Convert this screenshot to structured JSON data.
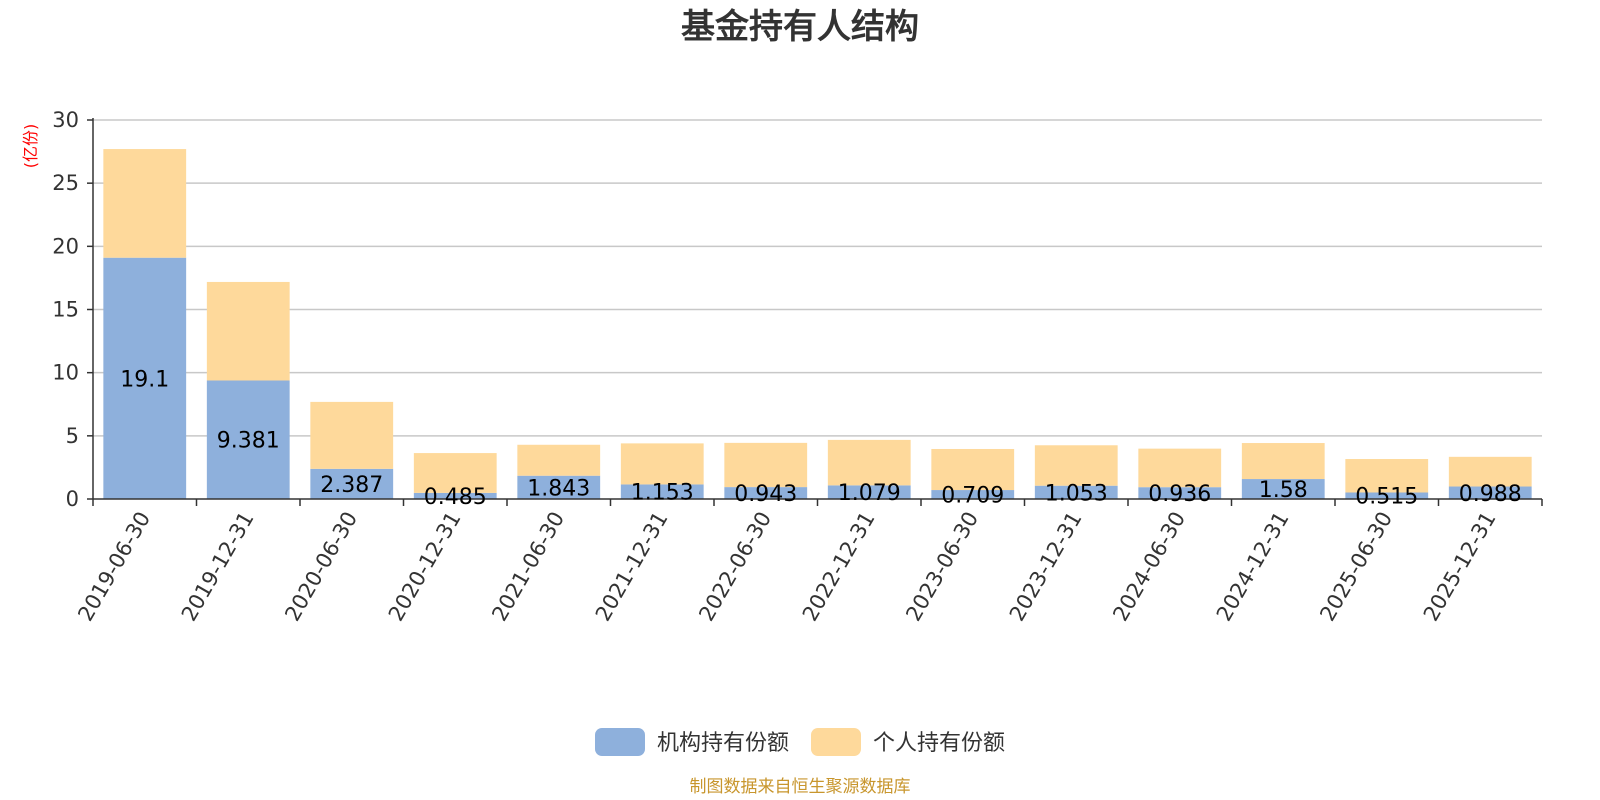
{
  "chart_data": {
    "type": "bar",
    "stacked": true,
    "title": "基金持有人结构",
    "ylabel": "(亿份)",
    "ylim": [
      0,
      30
    ],
    "yticks": [
      0,
      5,
      10,
      15,
      20,
      25,
      30
    ],
    "grid": true,
    "legend_position": "bottom",
    "categories": [
      "2019-06-30",
      "2019-12-31",
      "2020-06-30",
      "2020-12-31",
      "2021-06-30",
      "2021-12-31",
      "2022-06-30",
      "2022-12-31",
      "2023-06-30",
      "2023-12-31",
      "2024-06-30",
      "2024-12-31",
      "2025-06-30",
      "2025-12-31"
    ],
    "series": [
      {
        "name": "机构持有份额",
        "color": "#8eb0dc",
        "values": [
          19.1,
          9.381,
          2.387,
          0.485,
          1.843,
          1.153,
          0.943,
          1.079,
          0.709,
          1.053,
          0.936,
          1.58,
          0.515,
          0.988
        ],
        "labels": [
          "19.1",
          "9.381",
          "2.387",
          "0.485",
          "1.843",
          "1.153",
          "0.943",
          "1.079",
          "0.709",
          "1.053",
          "0.936",
          "1.58",
          "0.515",
          "0.988"
        ]
      },
      {
        "name": "个人持有份额",
        "color": "#fed99b",
        "values": [
          8.6,
          7.8,
          5.3,
          3.15,
          2.45,
          3.25,
          3.5,
          3.6,
          3.25,
          3.2,
          3.05,
          2.85,
          2.65,
          2.35
        ]
      }
    ],
    "unit_color": "#ff0000"
  },
  "source": {
    "text": "制图数据来自恒生聚源数据库",
    "color": "#c8962d"
  }
}
